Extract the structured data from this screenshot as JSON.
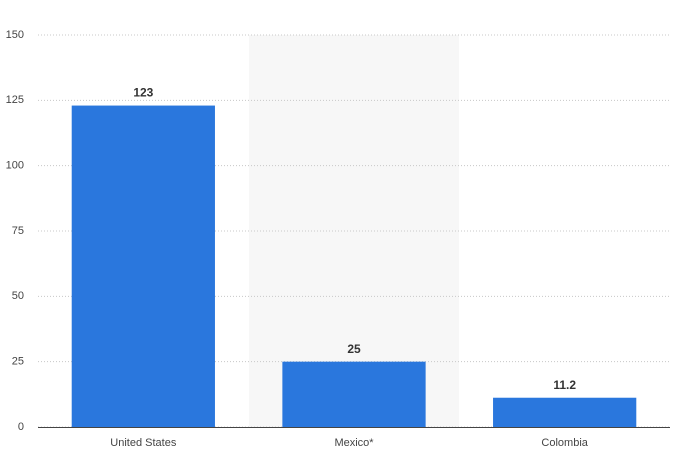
{
  "chart_data": {
    "type": "bar",
    "categories": [
      "United States",
      "Mexico*",
      "Colombia"
    ],
    "values": [
      123,
      25,
      11.2
    ],
    "color": "#2a77dd",
    "ylim": [
      0,
      150
    ],
    "yticks": [
      0,
      25,
      50,
      75,
      100,
      125,
      150
    ],
    "grid": true
  }
}
